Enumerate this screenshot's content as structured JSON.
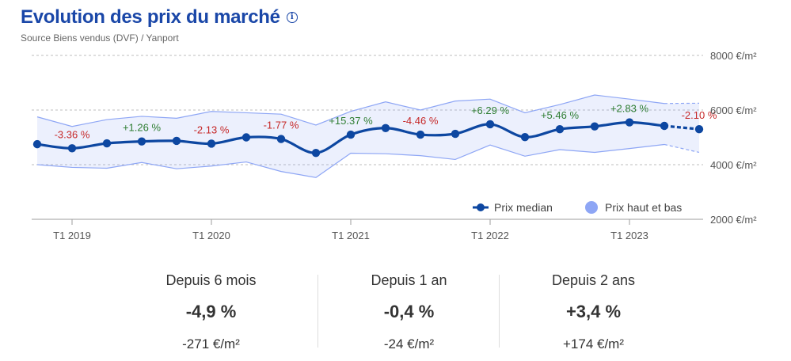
{
  "header": {
    "title": "Evolution des prix du marché",
    "info_icon": "info-icon",
    "source": "Source Biens vendus (DVF) / Yanport"
  },
  "chart_data": {
    "type": "line",
    "unit": "€/m²",
    "ylim": [
      2000,
      8000
    ],
    "y_ticks": [
      {
        "value": 8000,
        "label": "8000 €/m²"
      },
      {
        "value": 6000,
        "label": "6000 €/m²"
      },
      {
        "value": 4000,
        "label": "4000 €/m²"
      },
      {
        "value": 2000,
        "label": "2000 €/m²"
      }
    ],
    "x_ticks": [
      {
        "index": 1,
        "label": "T1 2019"
      },
      {
        "index": 5,
        "label": "T1 2020"
      },
      {
        "index": 9,
        "label": "T1 2021"
      },
      {
        "index": 13,
        "label": "T1 2022"
      },
      {
        "index": 17,
        "label": "T1 2023"
      }
    ],
    "colors": {
      "median": "#0d47a1",
      "band": "#8ea6f5",
      "positive": "#2e7d32",
      "negative": "#c62828",
      "axis": "#999999"
    },
    "series": [
      {
        "name": "Prix median",
        "values": [
          4750,
          4600,
          4780,
          4850,
          4870,
          4770,
          5000,
          4940,
          4430,
          5100,
          5340,
          5100,
          5130,
          5480,
          5010,
          5300,
          5400,
          5550,
          5420,
          5300
        ],
        "forecast_from_index": 18
      },
      {
        "name": "Prix haut",
        "values": [
          5750,
          5400,
          5650,
          5770,
          5700,
          5950,
          5900,
          5850,
          5450,
          5950,
          6300,
          6000,
          6330,
          6400,
          5900,
          6200,
          6550,
          6400,
          6240,
          6250
        ]
      },
      {
        "name": "Prix bas",
        "values": [
          4000,
          3900,
          3870,
          4080,
          3850,
          3950,
          4100,
          3750,
          3530,
          4420,
          4400,
          4330,
          4190,
          4720,
          4310,
          4550,
          4450,
          4590,
          4740,
          4450
        ]
      }
    ],
    "annotations": [
      {
        "index": 1,
        "text": "-3.36 %",
        "sign": "negative"
      },
      {
        "index": 3,
        "text": "+1.26 %",
        "sign": "positive"
      },
      {
        "index": 5,
        "text": "-2.13 %",
        "sign": "negative"
      },
      {
        "index": 7,
        "text": "-1.77 %",
        "sign": "negative"
      },
      {
        "index": 9,
        "text": "+15.37 %",
        "sign": "positive"
      },
      {
        "index": 11,
        "text": "-4.46 %",
        "sign": "negative"
      },
      {
        "index": 13,
        "text": "+6.29 %",
        "sign": "positive"
      },
      {
        "index": 15,
        "text": "+5.46 %",
        "sign": "positive"
      },
      {
        "index": 17,
        "text": "+2.83 %",
        "sign": "positive"
      },
      {
        "index": 19,
        "text": "-2.10 %",
        "sign": "negative"
      }
    ],
    "legend": [
      {
        "label": "Prix median",
        "kind": "line-marker"
      },
      {
        "label": "Prix haut et bas",
        "kind": "circle"
      }
    ]
  },
  "stats": [
    {
      "label": "Depuis 6 mois",
      "pct": "-4,9 %",
      "abs": "-271 €/m²"
    },
    {
      "label": "Depuis 1 an",
      "pct": "-0,4 %",
      "abs": "-24 €/m²"
    },
    {
      "label": "Depuis 2 ans",
      "pct": "+3,4 %",
      "abs": "+174 €/m²"
    }
  ]
}
